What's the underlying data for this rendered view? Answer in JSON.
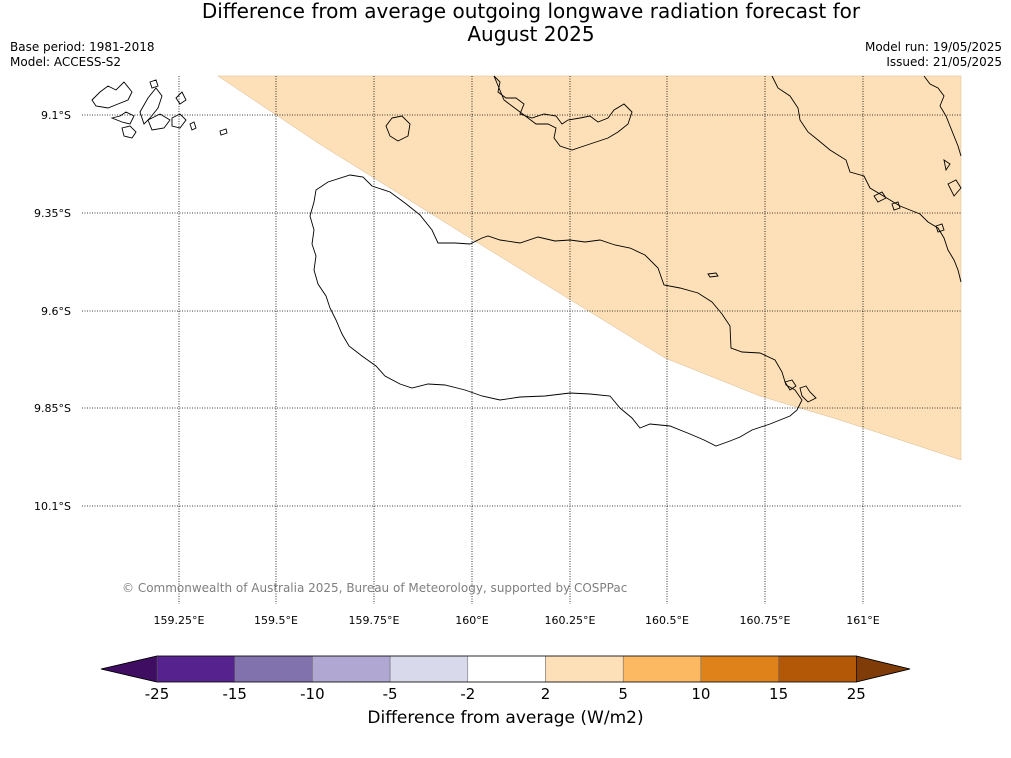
{
  "title_line1": "Difference from average outgoing longwave radiation forecast for",
  "title_line2": "August 2025",
  "base_period": "Base period: 1981-2018",
  "model": "Model: ACCESS-S2",
  "model_run": "Model run: 19/05/2025",
  "issued": "Issued: 21/05/2025",
  "copyright": "© Commonwealth of Australia 2025, Bureau of Meteorology, supported by COSPPac",
  "lat_labels": [
    "9.1°S",
    "9.35°S",
    "9.6°S",
    "9.85°S",
    "10.1°S"
  ],
  "lon_labels": [
    "159.25°E",
    "159.5°E",
    "159.75°E",
    "160°E",
    "160.25°E",
    "160.5°E",
    "160.75°E",
    "161°E"
  ],
  "colorbar": {
    "label": "Difference from average (W/m2)",
    "ticks": [
      "-25",
      "-15",
      "-10",
      "-5",
      "-2",
      "2",
      "5",
      "10",
      "15",
      "25"
    ],
    "colors": [
      "#3f0d62",
      "#56238e",
      "#8171ad",
      "#b0a8d2",
      "#d9d9ec",
      "#ffffff",
      "#fde0b7",
      "#fdb862",
      "#e0821a",
      "#b35806",
      "#7f3b08"
    ]
  },
  "forecast_region_color": "#fde0b7"
}
